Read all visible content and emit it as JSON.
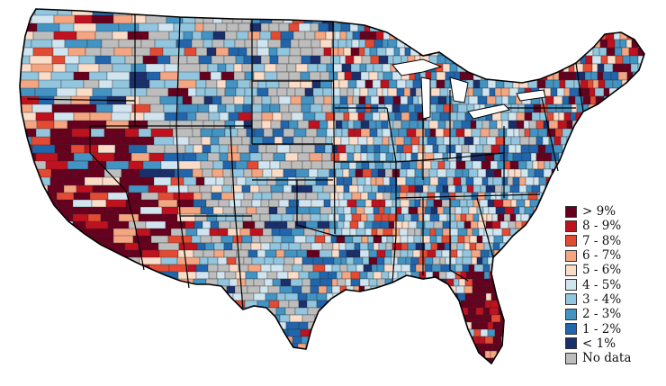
{
  "map": {
    "subject": "county choropleth map of the contiguous United States",
    "colors": {
      "land_fallback": "#bdbdbd",
      "county_border": "#2b2b2b",
      "state_border": "#000000"
    }
  },
  "legend": {
    "items": [
      {
        "label": "> 9%",
        "color": "#67001f"
      },
      {
        "label": "8 - 9%",
        "color": "#c0111f"
      },
      {
        "label": "7 - 8%",
        "color": "#e34a33"
      },
      {
        "label": "6 - 7%",
        "color": "#f4a582"
      },
      {
        "label": "5 - 6%",
        "color": "#fbdcc8"
      },
      {
        "label": "4 - 5%",
        "color": "#d1e5f0"
      },
      {
        "label": "3 - 4%",
        "color": "#92c5de"
      },
      {
        "label": "2 - 3%",
        "color": "#4393c3"
      },
      {
        "label": "1 - 2%",
        "color": "#2166ac"
      },
      {
        "label": "< 1%",
        "color": "#1a2f6b"
      },
      {
        "label": "No data",
        "color": "#bdbdbd"
      }
    ]
  }
}
